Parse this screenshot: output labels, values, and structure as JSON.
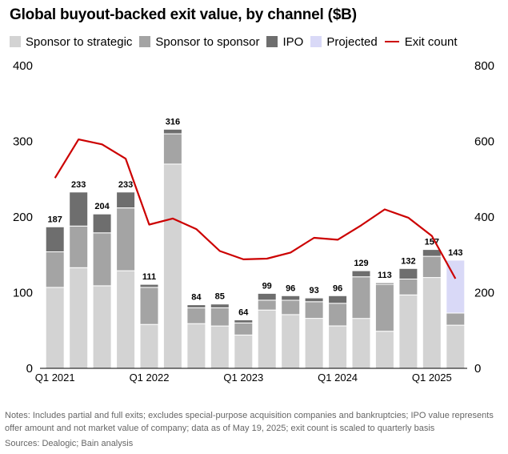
{
  "title": "Global buyout-backed exit value, by channel ($B)",
  "legend": [
    {
      "label": "Sponsor to strategic",
      "color": "#d3d3d3",
      "kind": "box"
    },
    {
      "label": "Sponsor to sponsor",
      "color": "#a4a4a4",
      "kind": "box"
    },
    {
      "label": "IPO",
      "color": "#6e6e6e",
      "kind": "box"
    },
    {
      "label": "Projected",
      "color": "#d9d9f7",
      "kind": "box"
    },
    {
      "label": "Exit count",
      "color": "#cc0000",
      "kind": "line"
    }
  ],
  "chart_data": {
    "type": "bar",
    "stacked": true,
    "categories": [
      "Q1 2021",
      "Q2 2021",
      "Q3 2021",
      "Q4 2021",
      "Q1 2022",
      "Q2 2022",
      "Q3 2022",
      "Q4 2022",
      "Q1 2023",
      "Q2 2023",
      "Q3 2023",
      "Q4 2023",
      "Q1 2024",
      "Q2 2024",
      "Q3 2024",
      "Q4 2024",
      "Q1 2025",
      "Q2 2025"
    ],
    "x_tick_labels": [
      "Q1 2021",
      "",
      "",
      "",
      "Q1 2022",
      "",
      "",
      "",
      "Q1 2023",
      "",
      "",
      "",
      "Q1 2024",
      "",
      "",
      "",
      "Q1 2025",
      ""
    ],
    "series": [
      {
        "name": "Sponsor to strategic",
        "color": "#d3d3d3",
        "values": [
          107,
          133,
          109,
          129,
          58,
          270,
          59,
          56,
          44,
          77,
          71,
          66,
          56,
          66,
          49,
          97,
          120,
          57
        ]
      },
      {
        "name": "Sponsor to sponsor",
        "color": "#a4a4a4",
        "values": [
          47,
          55,
          70,
          83,
          49,
          40,
          21,
          24,
          16,
          13,
          19,
          22,
          30,
          55,
          62,
          21,
          28,
          16
        ]
      },
      {
        "name": "IPO",
        "color": "#6e6e6e",
        "values": [
          33,
          45,
          25,
          21,
          4,
          6,
          4,
          5,
          4,
          9,
          6,
          5,
          10,
          8,
          2,
          14,
          9,
          0
        ]
      },
      {
        "name": "Projected",
        "color": "#d9d9f7",
        "values": [
          0,
          0,
          0,
          0,
          0,
          0,
          0,
          0,
          0,
          0,
          0,
          0,
          0,
          0,
          0,
          0,
          0,
          70
        ]
      }
    ],
    "totals": [
      187,
      233,
      204,
      233,
      111,
      316,
      84,
      85,
      64,
      99,
      96,
      93,
      96,
      129,
      113,
      132,
      157,
      143
    ],
    "line_series": {
      "name": "Exit count",
      "color": "#cc0000",
      "axis": "right",
      "values": [
        503,
        605,
        592,
        554,
        380,
        396,
        368,
        310,
        288,
        290,
        306,
        345,
        340,
        378,
        420,
        398,
        350,
        237
      ]
    },
    "ylim_left": [
      0,
      400
    ],
    "yticks_left": [
      "0",
      "100",
      "200",
      "300",
      "400"
    ],
    "ylim_right": [
      0,
      800
    ],
    "yticks_right": [
      "0",
      "200",
      "400",
      "600",
      "800"
    ],
    "grid": false,
    "legend_position": "top"
  },
  "notes": "Notes: Includes partial and full exits; excludes special-purpose acquisition companies and bankruptcies; IPO value represents offer amount and not market value of company; data as of May 19, 2025; exit count is scaled to quarterly basis",
  "sources": "Sources: Dealogic; Bain analysis"
}
